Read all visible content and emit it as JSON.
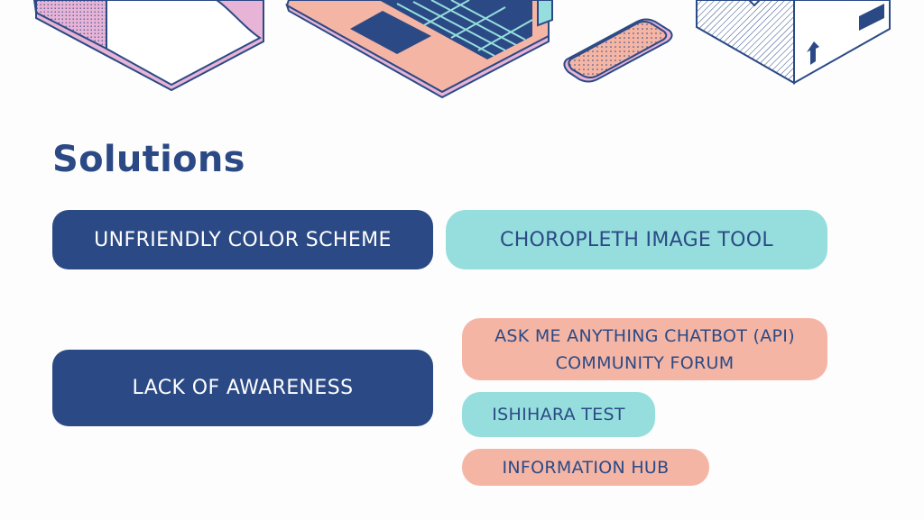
{
  "slide": {
    "title": "Solutions"
  },
  "problems": [
    {
      "label": "UNFRIENDLY COLOR SCHEME"
    },
    {
      "label": "LACK OF AWARENESS"
    }
  ],
  "solutions": [
    {
      "lines": [
        "CHOROPLETH IMAGE TOOL"
      ],
      "color": "teal"
    },
    {
      "lines": [
        "ASK ME ANYTHING CHATBOT (API)",
        "COMMUNITY FORUM"
      ],
      "color": "salmon"
    },
    {
      "lines": [
        "ISHIHARA TEST"
      ],
      "color": "teal"
    },
    {
      "lines": [
        "INFORMATION HUB"
      ],
      "color": "salmon"
    }
  ],
  "illustration_icons": [
    "book-icon",
    "laptop-icon",
    "smartphone-icon",
    "box-icon"
  ],
  "colors": {
    "navy": "#2b4a85",
    "teal": "#96dedd",
    "salmon": "#f5b5a5",
    "pink": "#e7b3d6",
    "background": "#fdfdfd"
  }
}
